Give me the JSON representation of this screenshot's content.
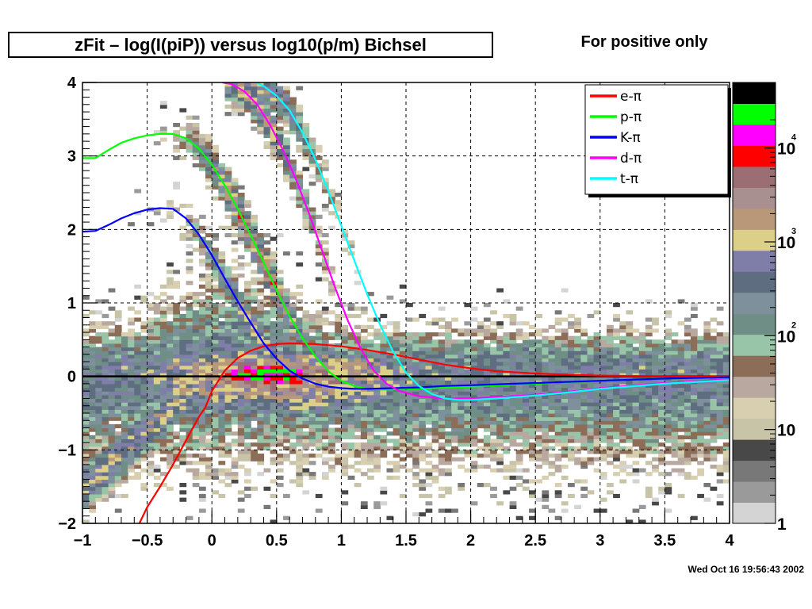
{
  "header": {
    "title": "zFit – log(I(piP)) versus log10(p/m) Bichsel",
    "subtitle": "For positive only"
  },
  "footer": {
    "timestamp": "Wed Oct 16 19:56:43 2002"
  },
  "chart_data": {
    "type": "heatmap",
    "title": "zFit – log(I(piP)) versus log10(p/m) Bichsel",
    "xlabel": "",
    "ylabel": "",
    "xlim": [
      -1,
      4
    ],
    "ylim": [
      -2,
      4
    ],
    "x_ticks": [
      -1,
      -0.5,
      0,
      0.5,
      1,
      1.5,
      2,
      2.5,
      3,
      3.5,
      4
    ],
    "x_tick_labels": [
      "−1",
      "−0.5",
      "0",
      "0.5",
      "1",
      "1.5",
      "2",
      "2.5",
      "3",
      "3.5",
      "4"
    ],
    "y_ticks": [
      -2,
      -1,
      0,
      1,
      2,
      3,
      4
    ],
    "y_tick_labels": [
      "−2",
      "−1",
      "0",
      "1",
      "2",
      "3",
      "4"
    ],
    "grid": true,
    "legend_position": "top-right",
    "zscale": "log",
    "colorbar": {
      "colors": [
        "#d4d4d4",
        "#9a9a9a",
        "#787878",
        "#484848",
        "#c8c4a8",
        "#d8cfb0",
        "#b8a8a0",
        "#8c6e58",
        "#98c4a8",
        "#6f8e86",
        "#7e909c",
        "#5e6e80",
        "#7e7ea8",
        "#dcd088",
        "#b89878",
        "#a89090",
        "#9a6e72",
        "#ff0000",
        "#ff00ff",
        "#00ff00",
        "#000000"
      ],
      "labels": [
        {
          "text": "1",
          "exponent": "",
          "value": 1
        },
        {
          "text": "10",
          "exponent": "",
          "value": 10
        },
        {
          "text": "10",
          "exponent": "2",
          "value": 100
        },
        {
          "text": "10",
          "exponent": "3",
          "value": 1000
        },
        {
          "text": "10",
          "exponent": "4",
          "value": 10000
        }
      ],
      "max_value": 50000
    },
    "series": [
      {
        "name": "e-π",
        "color": "#ff0000",
        "x": [
          -0.56,
          -0.5,
          -0.4,
          -0.3,
          -0.2,
          -0.1,
          -0.05,
          0,
          0.1,
          0.2,
          0.3,
          0.4,
          0.5,
          0.6,
          0.8,
          1.0,
          1.2,
          1.4,
          1.6,
          1.8,
          2.0,
          2.2,
          2.5,
          2.8,
          3.0,
          3.5,
          4.0
        ],
        "y": [
          -2.0,
          -1.78,
          -1.5,
          -1.2,
          -0.87,
          -0.55,
          -0.42,
          -0.2,
          0.08,
          0.25,
          0.35,
          0.41,
          0.44,
          0.45,
          0.44,
          0.41,
          0.36,
          0.3,
          0.23,
          0.16,
          0.11,
          0.07,
          0.04,
          0.02,
          0.01,
          0.0,
          0.0
        ]
      },
      {
        "name": "p-π",
        "color": "#00ff00",
        "x": [
          -1.0,
          -0.9,
          -0.8,
          -0.7,
          -0.6,
          -0.5,
          -0.4,
          -0.3,
          -0.2,
          -0.1,
          0.0,
          0.1,
          0.2,
          0.3,
          0.4,
          0.5,
          0.6,
          0.7,
          0.8,
          0.9,
          1.0,
          1.1,
          1.2,
          1.3,
          1.4,
          1.5,
          1.7,
          2.0,
          2.5,
          3.0,
          3.5,
          4.0
        ],
        "y": [
          2.97,
          2.97,
          3.08,
          3.18,
          3.24,
          3.28,
          3.3,
          3.3,
          3.24,
          3.1,
          2.88,
          2.6,
          2.28,
          1.92,
          1.55,
          1.17,
          0.82,
          0.52,
          0.27,
          0.07,
          -0.06,
          -0.13,
          -0.17,
          -0.18,
          -0.18,
          -0.17,
          -0.16,
          -0.14,
          -0.1,
          -0.06,
          -0.03,
          -0.01
        ]
      },
      {
        "name": "K-π",
        "color": "#0000ff",
        "x": [
          -1.0,
          -0.9,
          -0.8,
          -0.7,
          -0.6,
          -0.5,
          -0.4,
          -0.3,
          -0.2,
          -0.1,
          0.0,
          0.1,
          0.2,
          0.3,
          0.4,
          0.5,
          0.6,
          0.7,
          0.8,
          0.9,
          1.0,
          1.1,
          1.2,
          1.4,
          1.6,
          1.8,
          2.0,
          2.5,
          3.0,
          3.5,
          4.0
        ],
        "y": [
          1.97,
          1.98,
          2.06,
          2.15,
          2.22,
          2.27,
          2.29,
          2.28,
          2.15,
          1.93,
          1.65,
          1.33,
          1.02,
          0.73,
          0.45,
          0.24,
          0.08,
          -0.03,
          -0.1,
          -0.14,
          -0.16,
          -0.17,
          -0.17,
          -0.16,
          -0.15,
          -0.13,
          -0.12,
          -0.09,
          -0.06,
          -0.03,
          -0.01
        ]
      },
      {
        "name": "d-π",
        "color": "#ff00ff",
        "x": [
          0.08,
          0.15,
          0.25,
          0.35,
          0.45,
          0.55,
          0.65,
          0.75,
          0.85,
          0.95,
          1.05,
          1.15,
          1.25,
          1.35,
          1.45,
          1.6,
          1.8,
          2.0,
          2.2,
          2.5,
          2.8,
          3.0,
          3.5,
          4.0
        ],
        "y": [
          4.0,
          3.98,
          3.88,
          3.7,
          3.42,
          3.08,
          2.68,
          2.22,
          1.72,
          1.22,
          0.76,
          0.38,
          0.08,
          -0.1,
          -0.2,
          -0.27,
          -0.3,
          -0.3,
          -0.28,
          -0.25,
          -0.2,
          -0.16,
          -0.09,
          -0.04
        ]
      },
      {
        "name": "t-π",
        "color": "#00ffff",
        "x": [
          0.34,
          0.4,
          0.5,
          0.6,
          0.7,
          0.8,
          0.9,
          1.0,
          1.1,
          1.2,
          1.3,
          1.4,
          1.5,
          1.6,
          1.7,
          1.8,
          1.9,
          2.0,
          2.2,
          2.5,
          2.8,
          3.0,
          3.5,
          4.0
        ],
        "y": [
          4.0,
          3.95,
          3.82,
          3.62,
          3.32,
          2.95,
          2.52,
          2.05,
          1.58,
          1.12,
          0.7,
          0.34,
          0.05,
          -0.13,
          -0.24,
          -0.3,
          -0.32,
          -0.32,
          -0.3,
          -0.26,
          -0.21,
          -0.17,
          -0.1,
          -0.05
        ]
      }
    ]
  }
}
